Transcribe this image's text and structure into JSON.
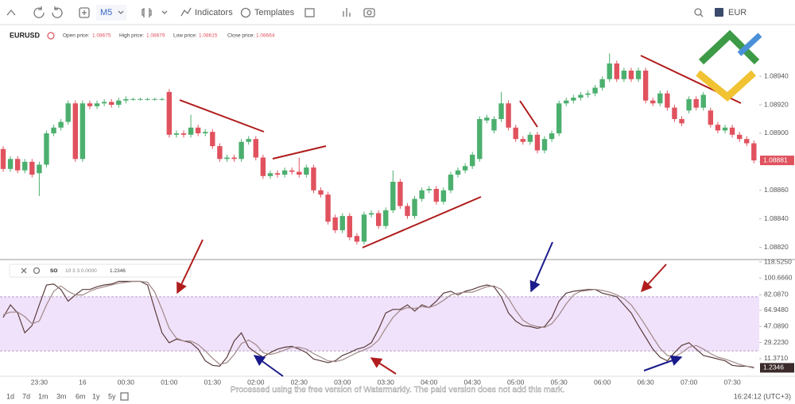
{
  "toolbar": {
    "timeframe": "M5",
    "indicators": "Indicators",
    "templates": "Templates",
    "account": "EUR"
  },
  "symbol_bar": {
    "symbol": "EURUSD",
    "prices": [
      {
        "label": "Open price:",
        "value": "1.08675"
      },
      {
        "label": "High price:",
        "value": "1.08679"
      },
      {
        "label": "Low price:",
        "value": "1.08615"
      },
      {
        "label": "Close price:",
        "value": "1.08664"
      }
    ]
  },
  "indicator_legend": {
    "name": "SO",
    "params": "10 3 3 0.0000",
    "value": "1.2346"
  },
  "chart_data": [
    {
      "type": "candlestick",
      "categories": [
        null,
        null,
        null,
        null,
        null,
        "23:30",
        null,
        null,
        null,
        null,
        null,
        "16",
        null,
        null,
        null,
        null,
        null,
        "00:30",
        null,
        null,
        null,
        null,
        null,
        "01:00",
        null,
        null,
        null,
        null,
        null,
        "01:30",
        null,
        null,
        null,
        null,
        null,
        "02:00",
        null,
        null,
        null,
        null,
        null,
        "02:30",
        null,
        null,
        null,
        null,
        null,
        "03:00",
        null,
        null,
        null,
        null,
        null,
        "03:30",
        null,
        null,
        null,
        null,
        null,
        "04:00",
        null,
        null,
        null,
        null,
        null,
        "04:30",
        null,
        null,
        null,
        null,
        null,
        "05:00",
        null,
        null,
        null,
        null,
        null,
        "05:30",
        null,
        null,
        null,
        null,
        null,
        "06:00",
        null,
        null,
        null,
        null,
        null,
        "06:30",
        null,
        null,
        null,
        null,
        null,
        "07:00",
        null,
        null,
        null,
        null,
        null,
        "07:30",
        null,
        null,
        null
      ],
      "open": [
        1.08889,
        1.08875,
        1.08882,
        1.08874,
        1.0888,
        1.08872,
        1.08878,
        1.089,
        1.08904,
        1.08908,
        1.08921,
        1.08882,
        1.08921,
        1.08919,
        1.08921,
        1.08922,
        1.0892,
        1.08923,
        1.08924,
        1.08924,
        1.08924,
        1.08924,
        1.08924,
        1.08929,
        1.08899,
        1.089,
        1.08899,
        1.08904,
        1.089,
        1.08901,
        1.08891,
        1.08882,
        1.08883,
        1.08882,
        1.08894,
        1.08896,
        1.08883,
        1.0887,
        1.08872,
        1.08871,
        1.08874,
        1.08873,
        1.08871,
        1.08876,
        1.0886,
        1.08857,
        1.08841,
        1.08832,
        1.08842,
        1.08828,
        1.08824,
        1.08843,
        1.08844,
        1.08835,
        1.08846,
        1.08866,
        1.08849,
        1.08842,
        1.08854,
        1.0886,
        1.08861,
        1.08852,
        1.0886,
        1.08871,
        1.08874,
        1.08877,
        1.08882,
        1.08909,
        1.08902,
        1.0891,
        1.08921,
        1.08904,
        1.08896,
        1.08894,
        1.08899,
        1.08888,
        1.08896,
        1.089,
        1.08921,
        1.08923,
        1.08925,
        1.08927,
        1.08928,
        1.08932,
        1.08938,
        1.08949,
        1.08938,
        1.08944,
        1.08938,
        1.08944,
        1.08923,
        1.08921,
        1.08928,
        1.08918,
        1.0891,
        1.08916,
        1.08924,
        1.08918,
        1.08916,
        1.08906,
        1.08902,
        1.08904,
        1.08899,
        1.08896,
        1.08893
      ],
      "high": [
        1.08891,
        1.08884,
        1.08884,
        1.08882,
        1.08882,
        1.0888,
        1.08902,
        1.08906,
        1.0891,
        1.08923,
        1.08923,
        1.08923,
        1.08923,
        1.08923,
        1.08924,
        1.08924,
        1.08925,
        1.08926,
        1.08925,
        1.08925,
        1.08925,
        1.08925,
        1.08925,
        1.08931,
        1.08902,
        1.08902,
        1.08913,
        1.08906,
        1.08903,
        1.08903,
        1.08893,
        1.08885,
        1.08885,
        1.08896,
        1.08898,
        1.08898,
        1.08885,
        1.08874,
        1.08874,
        1.08876,
        1.08876,
        1.08883,
        1.08878,
        1.08878,
        1.08862,
        1.08859,
        1.08843,
        1.08844,
        1.08844,
        1.0883,
        1.08845,
        1.08846,
        1.08846,
        1.08848,
        1.08874,
        1.08868,
        1.08851,
        1.08856,
        1.08862,
        1.08863,
        1.08863,
        1.08862,
        1.08873,
        1.08876,
        1.08879,
        1.08887,
        1.08912,
        1.08913,
        1.08912,
        1.08929,
        1.08923,
        1.08906,
        1.08898,
        1.08901,
        1.08901,
        1.08898,
        1.08902,
        1.08923,
        1.08925,
        1.08927,
        1.08929,
        1.0893,
        1.08934,
        1.0894,
        1.08956,
        1.08951,
        1.08946,
        1.08946,
        1.08946,
        1.08946,
        1.08925,
        1.0893,
        1.0893,
        1.0892,
        1.08912,
        1.08926,
        1.08926,
        1.08929,
        1.08918,
        1.08908,
        1.08906,
        1.08906,
        1.08901,
        1.08898,
        1.08895
      ],
      "low": [
        1.08873,
        1.08873,
        1.08872,
        1.08872,
        1.08869,
        1.08856,
        1.08876,
        1.08898,
        1.08902,
        1.08906,
        1.0888,
        1.0888,
        1.08917,
        1.08917,
        1.08919,
        1.08918,
        1.08918,
        1.08921,
        1.08923,
        1.08923,
        1.08923,
        1.08923,
        1.08923,
        1.08897,
        1.08897,
        1.08897,
        1.08897,
        1.08898,
        1.08898,
        1.08889,
        1.0888,
        1.0888,
        1.0888,
        1.0888,
        1.08892,
        1.08881,
        1.08868,
        1.08868,
        1.08869,
        1.08869,
        1.08871,
        1.08869,
        1.08869,
        1.08858,
        1.08855,
        1.08836,
        1.0883,
        1.0883,
        1.08825,
        1.08822,
        1.08822,
        1.08841,
        1.08833,
        1.08833,
        1.08844,
        1.08847,
        1.0884,
        1.0884,
        1.08852,
        1.08858,
        1.0885,
        1.0885,
        1.08858,
        1.08869,
        1.08872,
        1.08875,
        1.0888,
        1.08907,
        1.089,
        1.08908,
        1.08902,
        1.08894,
        1.08892,
        1.08892,
        1.08886,
        1.08886,
        1.08894,
        1.08898,
        1.08919,
        1.08921,
        1.08923,
        1.08925,
        1.08926,
        1.0893,
        1.08936,
        1.08936,
        1.08936,
        1.08936,
        1.08936,
        1.08921,
        1.08919,
        1.08919,
        1.08916,
        1.08908,
        1.08905,
        1.08914,
        1.08916,
        1.08916,
        1.08904,
        1.089,
        1.089,
        1.08897,
        1.08894,
        1.08891,
        1.08879
      ],
      "close": [
        1.08875,
        1.08882,
        1.08874,
        1.0888,
        1.08871,
        1.08878,
        1.089,
        1.08904,
        1.08908,
        1.08921,
        1.08882,
        1.08921,
        1.08919,
        1.08921,
        1.08922,
        1.0892,
        1.08923,
        1.08924,
        1.08924,
        1.08924,
        1.08924,
        1.08924,
        1.08924,
        1.08899,
        1.089,
        1.08899,
        1.08904,
        1.089,
        1.08901,
        1.08891,
        1.08882,
        1.08883,
        1.08882,
        1.08894,
        1.08896,
        1.08883,
        1.0887,
        1.08872,
        1.08871,
        1.08874,
        1.08873,
        1.08871,
        1.08876,
        1.0886,
        1.08857,
        1.08838,
        1.08832,
        1.08842,
        1.08827,
        1.08824,
        1.08843,
        1.08844,
        1.08835,
        1.08846,
        1.08866,
        1.08849,
        1.08842,
        1.08854,
        1.0886,
        1.08861,
        1.08852,
        1.0886,
        1.08871,
        1.08874,
        1.08877,
        1.08885,
        1.0891,
        1.08911,
        1.0891,
        1.08921,
        1.08904,
        1.08896,
        1.08894,
        1.08899,
        1.08888,
        1.08896,
        1.089,
        1.08921,
        1.08923,
        1.08925,
        1.08927,
        1.08928,
        1.08932,
        1.08938,
        1.08949,
        1.08938,
        1.08944,
        1.08938,
        1.08944,
        1.08923,
        1.08921,
        1.08928,
        1.08918,
        1.0891,
        1.08907,
        1.08924,
        1.08918,
        1.08927,
        1.08906,
        1.08902,
        1.08904,
        1.08899,
        1.08896,
        1.08893,
        1.08881
      ],
      "up_color": "#4caf6e",
      "down_color": "#e0525e",
      "ylim": [
        1.08812,
        1.08959
      ],
      "yticks": [
        {
          "value": 1.0882,
          "label": "1.08820"
        },
        {
          "value": 1.0884,
          "label": "1.08840"
        },
        {
          "value": 1.0886,
          "label": "1.08860"
        },
        {
          "value": 1.0888,
          "label": "1.08880"
        },
        {
          "value": 1.089,
          "label": "1.08900"
        },
        {
          "value": 1.0892,
          "label": "1.08920"
        },
        {
          "value": 1.0894,
          "label": "1.08940"
        }
      ],
      "current": {
        "value": 1.08881,
        "label": "1.08881"
      },
      "current_color": "#e0525e",
      "grid": false
    },
    {
      "type": "line",
      "series": [
        {
          "color": "#5b3d3d",
          "values": [
            57,
            71,
            62,
            40,
            48,
            71,
            93,
            94,
            88,
            75,
            82,
            88,
            88,
            91,
            93,
            94,
            97,
            97,
            97,
            97,
            93,
            66,
            40,
            29,
            33,
            31,
            29,
            22,
            9,
            4,
            3,
            13,
            31,
            40,
            24,
            18,
            13,
            18,
            22,
            24,
            25,
            22,
            18,
            11,
            9,
            7,
            9,
            15,
            18,
            22,
            24,
            29,
            44,
            62,
            66,
            66,
            71,
            64,
            71,
            68,
            75,
            84,
            86,
            82,
            86,
            88,
            91,
            93,
            91,
            80,
            62,
            53,
            48,
            47,
            45,
            47,
            57,
            75,
            84,
            86,
            87,
            88,
            88,
            84,
            82,
            80,
            71,
            62,
            48,
            35,
            22,
            13,
            9,
            18,
            26,
            29,
            22,
            15,
            13,
            11,
            9,
            4,
            3,
            3,
            1.2346
          ]
        },
        {
          "color": "#a08888",
          "values": [
            60,
            63,
            63,
            58,
            50,
            53,
            71,
            86,
            92,
            86,
            82,
            82,
            86,
            89,
            91,
            93,
            95,
            96,
            97,
            97,
            96,
            85,
            66,
            45,
            34,
            31,
            31,
            27,
            20,
            12,
            5,
            7,
            16,
            28,
            32,
            27,
            18,
            16,
            18,
            21,
            24,
            24,
            22,
            17,
            13,
            9,
            8,
            10,
            14,
            18,
            21,
            25,
            32,
            45,
            57,
            65,
            68,
            67,
            69,
            68,
            71,
            76,
            82,
            84,
            85,
            85,
            88,
            91,
            92,
            88,
            78,
            65,
            54,
            49,
            47,
            46,
            50,
            60,
            72,
            82,
            86,
            87,
            88,
            87,
            85,
            82,
            78,
            71,
            60,
            48,
            35,
            23,
            15,
            13,
            18,
            24,
            26,
            22,
            17,
            13,
            11,
            8,
            5,
            3,
            2
          ]
        }
      ],
      "levels": [
        20,
        80
      ],
      "band_color": "#f1e2fb",
      "level_color": "#b9a3c9",
      "ylim": [
        -8.08,
        120.3
      ],
      "yticks": [
        {
          "value": 11.371,
          "label": "11.3710"
        },
        {
          "value": 29.223,
          "label": "29.2230"
        },
        {
          "value": 47.089,
          "label": "47.0890"
        },
        {
          "value": 64.948,
          "label": "64.9480"
        },
        {
          "value": 82.087,
          "label": "82.0870"
        },
        {
          "value": 100.666,
          "label": "100.6660"
        },
        {
          "value": 118.525,
          "label": "118.5250"
        }
      ],
      "current": {
        "value": 1.2346,
        "label": "1.2346"
      },
      "current_color": "#3b2a2a",
      "grid": false
    }
  ],
  "ranges": [
    "1d",
    "7d",
    "1m",
    "3m",
    "6m",
    "1y",
    "5y"
  ],
  "clock": "16:24:12 (UTC+3)",
  "watermark": "Processed using the free version of Watermarkly. The paid version does not add this mark."
}
